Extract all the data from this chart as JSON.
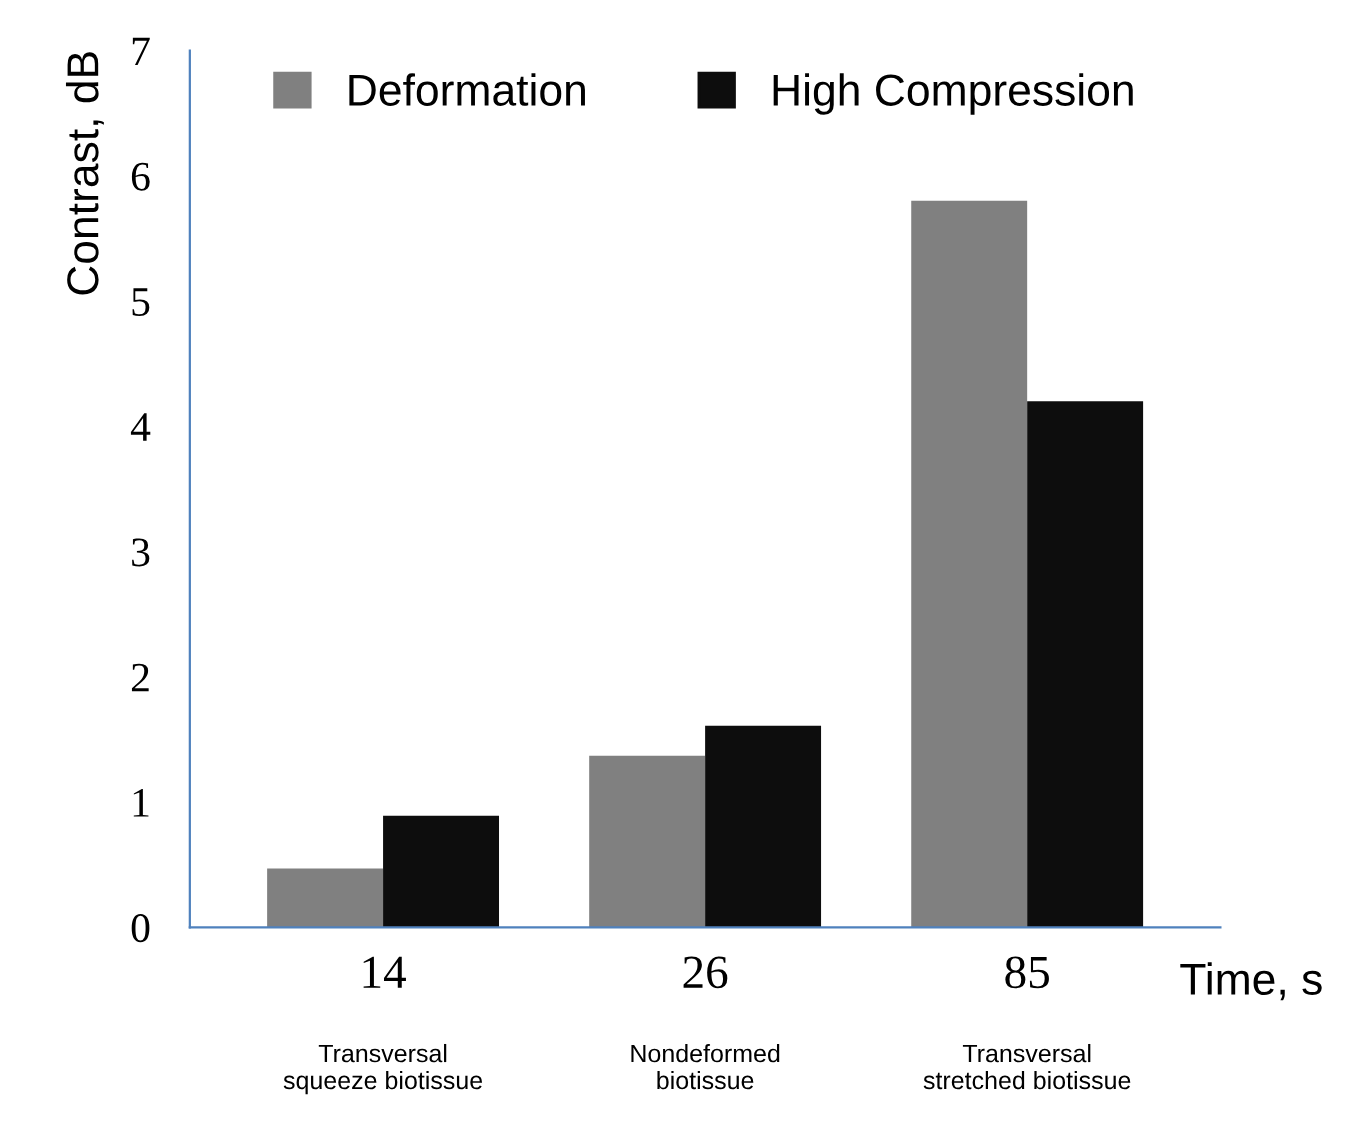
{
  "chart_data": {
    "type": "bar",
    "ylabel": "Contrast, dB",
    "xlabel": "Time, s",
    "categories": [
      "14",
      "26",
      "85"
    ],
    "annotations": [
      "Transversal\nsqueeze biotissue",
      "Nondeformed\nbiotissue",
      "Transversal\nstretched biotissue"
    ],
    "series": [
      {
        "name": "Deformation",
        "color": "#808080",
        "values": [
          0.47,
          1.37,
          5.8
        ]
      },
      {
        "name": "High Compression",
        "color": "#0d0d0d",
        "values": [
          0.89,
          1.61,
          4.2
        ]
      }
    ],
    "ylim": [
      0,
      7
    ],
    "yticks": [
      0,
      1,
      2,
      3,
      4,
      5,
      6,
      7
    ],
    "grid": false,
    "legend": "top"
  }
}
